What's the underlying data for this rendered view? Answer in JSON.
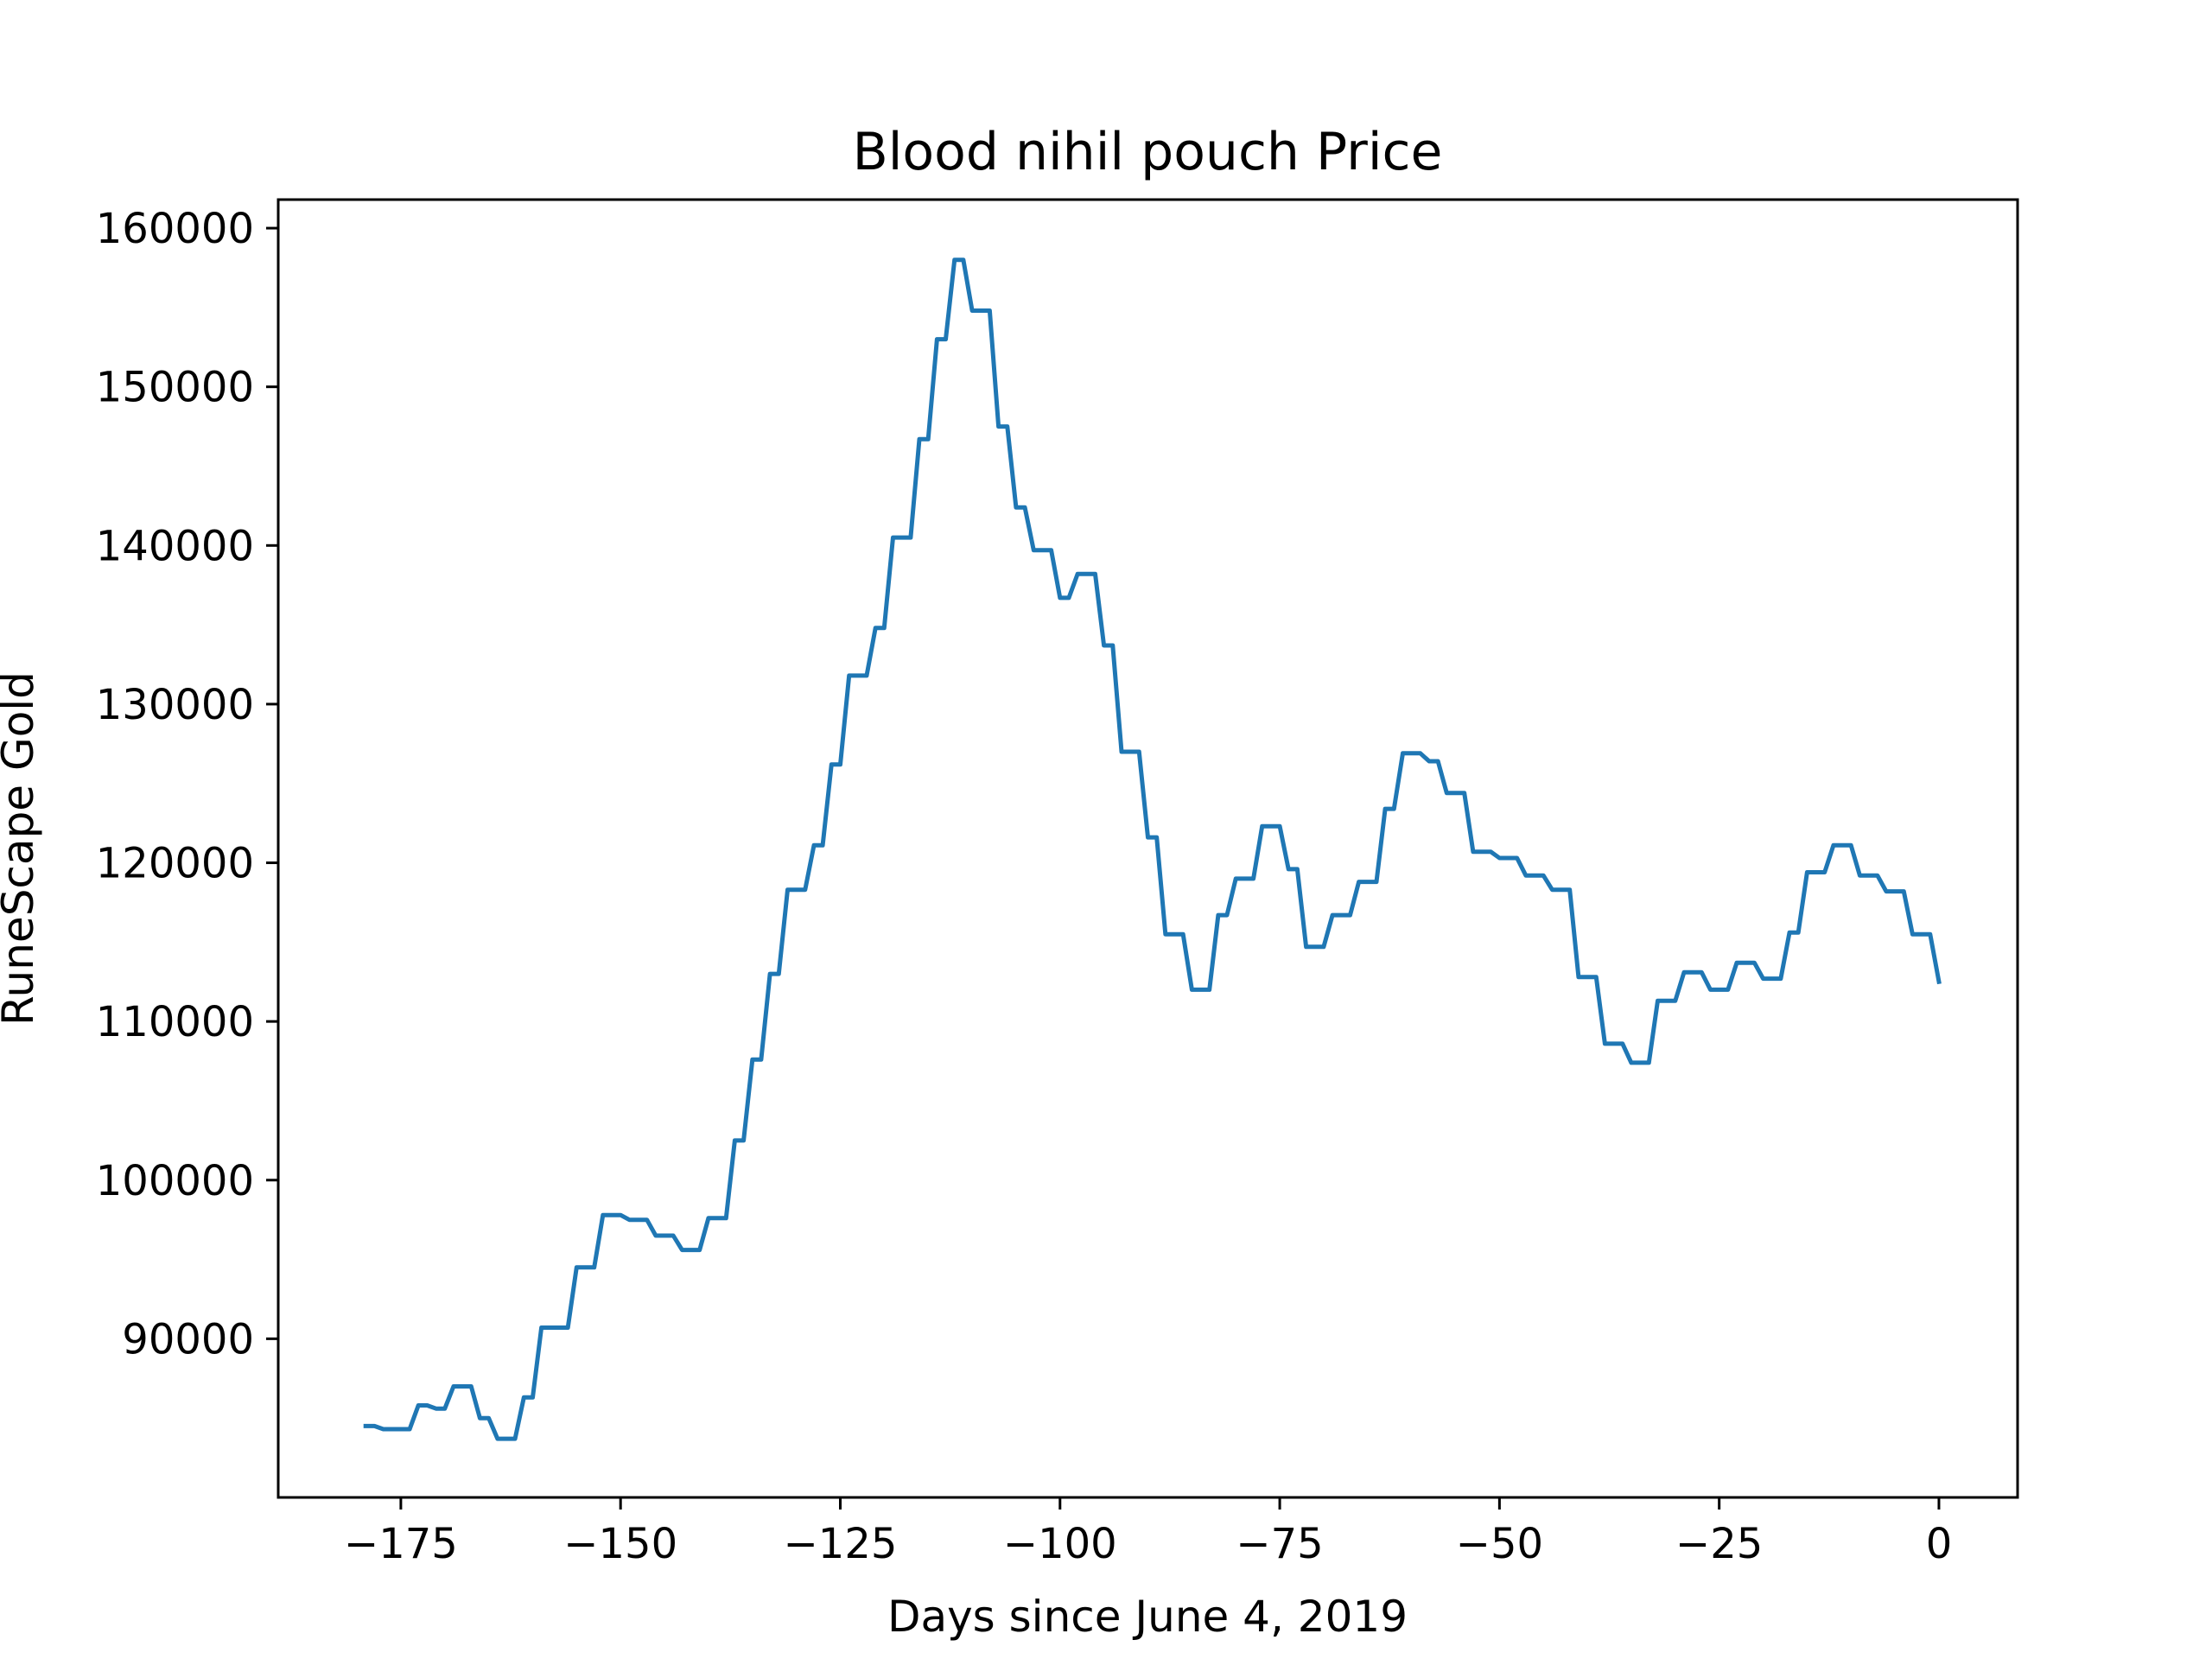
{
  "chart_data": {
    "type": "line",
    "title": "Blood nihil pouch Price",
    "xlabel": "Days since June 4, 2019",
    "ylabel": "RuneScape Gold",
    "xlim": [
      -188.95,
      8.95
    ],
    "ylim": [
      80000,
      161800
    ],
    "x_ticks": [
      -175,
      -150,
      -125,
      -100,
      -75,
      -50,
      -25,
      0
    ],
    "x_tick_labels": [
      "−175",
      "−150",
      "−125",
      "−100",
      "−75",
      "−50",
      "−25",
      "0"
    ],
    "y_ticks": [
      90000,
      100000,
      110000,
      120000,
      130000,
      140000,
      150000,
      160000
    ],
    "y_tick_labels": [
      "90000",
      "100000",
      "110000",
      "120000",
      "130000",
      "140000",
      "150000",
      "160000"
    ],
    "grid": false,
    "legend": "none",
    "series": [
      {
        "color": "#1f77b4",
        "points": [
          [
            -179,
            84500
          ],
          [
            -178,
            84500
          ],
          [
            -177,
            84300
          ],
          [
            -176,
            84300
          ],
          [
            -175,
            84300
          ],
          [
            -174,
            84300
          ],
          [
            -173,
            85800
          ],
          [
            -172,
            85800
          ],
          [
            -171,
            85600
          ],
          [
            -170,
            85600
          ],
          [
            -169,
            87000
          ],
          [
            -168,
            87000
          ],
          [
            -167,
            87000
          ],
          [
            -166,
            85000
          ],
          [
            -165,
            85000
          ],
          [
            -164,
            83700
          ],
          [
            -163,
            83700
          ],
          [
            -162,
            83700
          ],
          [
            -161,
            86300
          ],
          [
            -160,
            86300
          ],
          [
            -159,
            90700
          ],
          [
            -158,
            90700
          ],
          [
            -157,
            90700
          ],
          [
            -156,
            90700
          ],
          [
            -155,
            94500
          ],
          [
            -154,
            94500
          ],
          [
            -153,
            94500
          ],
          [
            -152,
            97800
          ],
          [
            -151,
            97800
          ],
          [
            -150,
            97800
          ],
          [
            -149,
            97500
          ],
          [
            -148,
            97500
          ],
          [
            -147,
            97500
          ],
          [
            -146,
            96500
          ],
          [
            -145,
            96500
          ],
          [
            -144,
            96500
          ],
          [
            -143,
            95600
          ],
          [
            -142,
            95600
          ],
          [
            -141,
            95600
          ],
          [
            -140,
            97600
          ],
          [
            -139,
            97600
          ],
          [
            -138,
            97600
          ],
          [
            -137,
            102500
          ],
          [
            -136,
            102500
          ],
          [
            -135,
            107600
          ],
          [
            -134,
            107600
          ],
          [
            -133,
            113000
          ],
          [
            -132,
            113000
          ],
          [
            -131,
            118300
          ],
          [
            -130,
            118300
          ],
          [
            -129,
            118300
          ],
          [
            -128,
            121100
          ],
          [
            -127,
            121100
          ],
          [
            -126,
            126200
          ],
          [
            -125,
            126200
          ],
          [
            -124,
            131800
          ],
          [
            -123,
            131800
          ],
          [
            -122,
            131800
          ],
          [
            -121,
            134800
          ],
          [
            -120,
            134800
          ],
          [
            -119,
            140500
          ],
          [
            -118,
            140500
          ],
          [
            -117,
            140500
          ],
          [
            -116,
            146700
          ],
          [
            -115,
            146700
          ],
          [
            -114,
            153000
          ],
          [
            -113,
            153000
          ],
          [
            -112,
            158000
          ],
          [
            -111,
            158000
          ],
          [
            -110,
            154800
          ],
          [
            -109,
            154800
          ],
          [
            -108,
            154800
          ],
          [
            -107,
            147500
          ],
          [
            -106,
            147500
          ],
          [
            -105,
            142400
          ],
          [
            -104,
            142400
          ],
          [
            -103,
            139700
          ],
          [
            -102,
            139700
          ],
          [
            -101,
            139700
          ],
          [
            -100,
            136700
          ],
          [
            -99,
            136700
          ],
          [
            -98,
            138200
          ],
          [
            -97,
            138200
          ],
          [
            -96,
            138200
          ],
          [
            -95,
            133700
          ],
          [
            -94,
            133700
          ],
          [
            -93,
            127000
          ],
          [
            -92,
            127000
          ],
          [
            -91,
            127000
          ],
          [
            -90,
            121600
          ],
          [
            -89,
            121600
          ],
          [
            -88,
            115500
          ],
          [
            -87,
            115500
          ],
          [
            -86,
            115500
          ],
          [
            -85,
            112000
          ],
          [
            -84,
            112000
          ],
          [
            -83,
            112000
          ],
          [
            -82,
            116700
          ],
          [
            -81,
            116700
          ],
          [
            -80,
            119000
          ],
          [
            -79,
            119000
          ],
          [
            -78,
            119000
          ],
          [
            -77,
            122300
          ],
          [
            -76,
            122300
          ],
          [
            -75,
            122300
          ],
          [
            -74,
            119600
          ],
          [
            -73,
            119600
          ],
          [
            -72,
            114700
          ],
          [
            -71,
            114700
          ],
          [
            -70,
            114700
          ],
          [
            -69,
            116700
          ],
          [
            -68,
            116700
          ],
          [
            -67,
            116700
          ],
          [
            -66,
            118800
          ],
          [
            -65,
            118800
          ],
          [
            -64,
            118800
          ],
          [
            -63,
            123400
          ],
          [
            -62,
            123400
          ],
          [
            -61,
            126900
          ],
          [
            -60,
            126900
          ],
          [
            -59,
            126900
          ],
          [
            -58,
            126400
          ],
          [
            -57,
            126400
          ],
          [
            -56,
            124400
          ],
          [
            -55,
            124400
          ],
          [
            -54,
            124400
          ],
          [
            -53,
            120700
          ],
          [
            -52,
            120700
          ],
          [
            -51,
            120700
          ],
          [
            -50,
            120300
          ],
          [
            -49,
            120300
          ],
          [
            -48,
            120300
          ],
          [
            -47,
            119200
          ],
          [
            -46,
            119200
          ],
          [
            -45,
            119200
          ],
          [
            -44,
            118300
          ],
          [
            -43,
            118300
          ],
          [
            -42,
            118300
          ],
          [
            -41,
            112800
          ],
          [
            -40,
            112800
          ],
          [
            -39,
            112800
          ],
          [
            -38,
            108600
          ],
          [
            -37,
            108600
          ],
          [
            -36,
            108600
          ],
          [
            -35,
            107400
          ],
          [
            -34,
            107400
          ],
          [
            -33,
            107400
          ],
          [
            -32,
            111300
          ],
          [
            -31,
            111300
          ],
          [
            -30,
            111300
          ],
          [
            -29,
            113100
          ],
          [
            -28,
            113100
          ],
          [
            -27,
            113100
          ],
          [
            -26,
            112000
          ],
          [
            -25,
            112000
          ],
          [
            -24,
            112000
          ],
          [
            -23,
            113700
          ],
          [
            -22,
            113700
          ],
          [
            -21,
            113700
          ],
          [
            -20,
            112700
          ],
          [
            -19,
            112700
          ],
          [
            -18,
            112700
          ],
          [
            -17,
            115600
          ],
          [
            -16,
            115600
          ],
          [
            -15,
            119400
          ],
          [
            -14,
            119400
          ],
          [
            -13,
            119400
          ],
          [
            -12,
            121100
          ],
          [
            -11,
            121100
          ],
          [
            -10,
            121100
          ],
          [
            -9,
            119200
          ],
          [
            -8,
            119200
          ],
          [
            -7,
            119200
          ],
          [
            -6,
            118200
          ],
          [
            -5,
            118200
          ],
          [
            -4,
            118200
          ],
          [
            -3,
            115500
          ],
          [
            -2,
            115500
          ],
          [
            -1,
            115500
          ],
          [
            0,
            112500
          ]
        ]
      }
    ]
  }
}
